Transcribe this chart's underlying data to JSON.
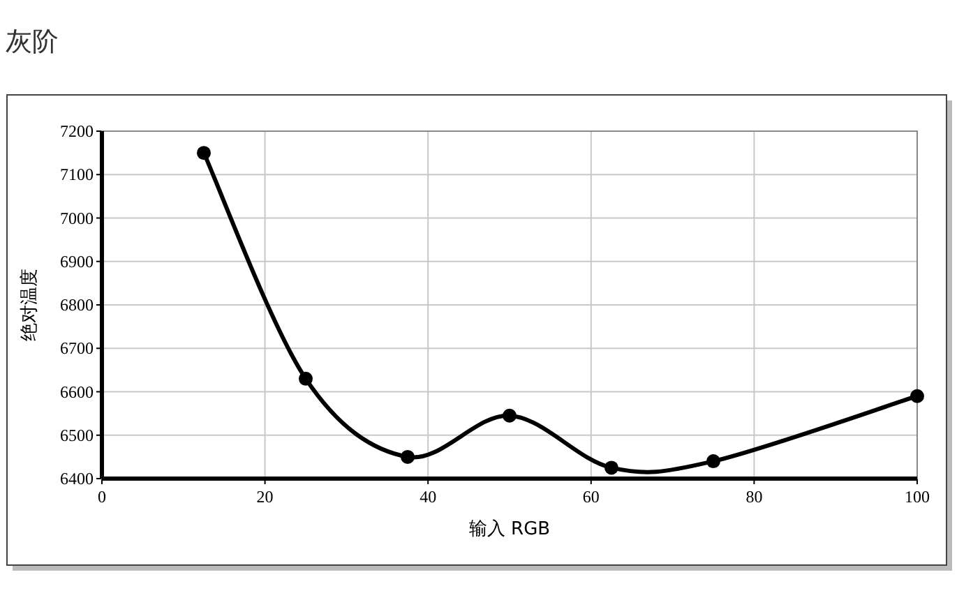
{
  "chart_data": {
    "type": "line",
    "title": "灰阶",
    "xlabel": "输入 RGB",
    "ylabel": "绝对温度",
    "x": [
      12.5,
      25,
      37.5,
      50,
      62.5,
      75,
      100
    ],
    "series": [
      {
        "color": "#000000",
        "values": [
          7150,
          6630,
          6450,
          6545,
          6425,
          6440,
          6590
        ]
      }
    ],
    "xlim": [
      0,
      100
    ],
    "xticks": [
      0,
      20,
      40,
      60,
      80,
      100
    ],
    "ylim": [
      6400,
      7200
    ],
    "yticks": [
      6400,
      6500,
      6600,
      6700,
      6800,
      6900,
      7000,
      7100,
      7200
    ],
    "grid": true,
    "marker": "circle",
    "line_style": "solid"
  }
}
